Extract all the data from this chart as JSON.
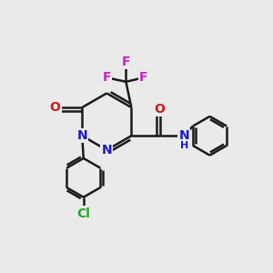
{
  "bg_color": "#eaeaea",
  "bond_color": "#1a1a1a",
  "bond_width": 1.8,
  "atom_colors": {
    "N": "#1a1acc",
    "O": "#cc1a1a",
    "F": "#cc22cc",
    "Cl": "#22aa22"
  },
  "font_size": 10,
  "figsize": [
    3.0,
    3.0
  ],
  "dpi": 100
}
